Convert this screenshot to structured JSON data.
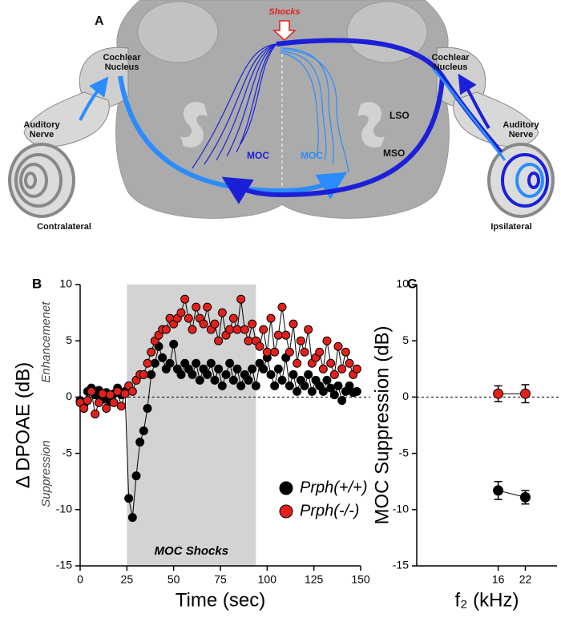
{
  "diagram": {
    "panel_label": "A",
    "stimulus": "Shocks",
    "left": {
      "cochlear_nucleus": [
        "Cochlear",
        "Nucleus"
      ],
      "auditory_nerve": [
        "Auditory",
        "Nerve"
      ],
      "side": "Contralateral",
      "neuron_group": "MOC"
    },
    "right": {
      "cochlear_nucleus": [
        "Cochlear",
        "Nucleus"
      ],
      "auditory_nerve": [
        "Auditory",
        "Nerve"
      ],
      "side": "Ipsilateral",
      "neuron_group": "MOC"
    },
    "nuclei": [
      "LSO",
      "MSO"
    ]
  },
  "chart_data": [
    {
      "type": "line",
      "panel_label": "B",
      "xlabel": "Time (sec)",
      "ylabel": "Δ DPOAE (dB)",
      "annotations": {
        "upper": "Enhancemenet",
        "lower": "Suppression"
      },
      "shaded_region": {
        "x": [
          25,
          94
        ],
        "label": "MOC Shocks"
      },
      "hline": 0,
      "legend": "lower right",
      "xlim": [
        0,
        150
      ],
      "ylim": [
        -15,
        10
      ],
      "xticks": [
        0,
        25,
        50,
        75,
        100,
        125,
        150
      ],
      "yticks": [
        -15,
        -10,
        -5,
        0,
        5,
        10
      ],
      "x": [
        0,
        2,
        4,
        6,
        8,
        10,
        12,
        14,
        16,
        18,
        20,
        22,
        24,
        26,
        28,
        30,
        32,
        34,
        36,
        38,
        40,
        42,
        44,
        46,
        48,
        50,
        52,
        54,
        56,
        58,
        60,
        62,
        64,
        66,
        68,
        70,
        72,
        74,
        76,
        78,
        80,
        82,
        84,
        86,
        88,
        90,
        92,
        94,
        96,
        98,
        100,
        102,
        104,
        106,
        108,
        110,
        112,
        114,
        116,
        118,
        120,
        122,
        124,
        126,
        128,
        130,
        132,
        134,
        136,
        138,
        140,
        142,
        144,
        146,
        148
      ],
      "series": [
        {
          "name": "Prph(+/+)",
          "color": "#000000",
          "values": [
            -0.3,
            -0.8,
            0.5,
            0.8,
            0.2,
            0.6,
            -0.2,
            0.4,
            -0.4,
            0.3,
            0.8,
            0.2,
            0.5,
            -9,
            -10.7,
            -7,
            -4,
            -3,
            -1,
            2,
            3,
            4.5,
            3.5,
            2.5,
            3,
            4.7,
            2.5,
            2,
            3,
            2.5,
            2,
            3,
            1.5,
            2.5,
            2,
            3,
            1.5,
            2.5,
            1,
            2,
            3,
            1.5,
            2.5,
            1,
            2,
            1.5,
            2.5,
            1,
            3,
            2.5,
            3.5,
            2,
            1,
            2.5,
            1.5,
            3.5,
            1,
            2,
            0.5,
            1.5,
            1,
            2,
            0.5,
            1.5,
            1,
            0.5,
            1.5,
            0.8,
            0.2,
            1,
            -0.3,
            0.5,
            1,
            0.4,
            0.5
          ]
        },
        {
          "name": "Prph(-/-)",
          "color": "#e3201b",
          "values": [
            -0.5,
            -1,
            -0.3,
            0.5,
            -1.5,
            -0.5,
            0.3,
            -1,
            0.2,
            -0.5,
            0.5,
            -0.8,
            0.3,
            1,
            0.5,
            1.5,
            2,
            2,
            3,
            4,
            5,
            5.5,
            6,
            6,
            7,
            6.5,
            7,
            7.5,
            8.7,
            7,
            6,
            8,
            7,
            6.5,
            8,
            6,
            6.5,
            5,
            7.5,
            5.5,
            6,
            7,
            6,
            8.7,
            6,
            5,
            6.5,
            5,
            4.5,
            6,
            4,
            7,
            4,
            5.5,
            8,
            5.5,
            4,
            6.5,
            3,
            5,
            4,
            6,
            3,
            3.5,
            4,
            2.5,
            5,
            3,
            2,
            4.5,
            2.5,
            4,
            3,
            2,
            2.5
          ]
        }
      ]
    },
    {
      "type": "line",
      "panel_label": "C",
      "xlabel": "f₂ (kHz)",
      "ylabel": "MOC Suppression (dB)",
      "hline": 0,
      "xlim": [
        -2,
        29
      ],
      "ylim": [
        -15,
        10
      ],
      "xticks": [
        16,
        22
      ],
      "yticks": [
        -15,
        -10,
        -5,
        0,
        5,
        10
      ],
      "x": [
        16,
        22
      ],
      "series": [
        {
          "name": "Prph(+/+)",
          "color": "#000000",
          "values": [
            -8.3,
            -8.9
          ],
          "errors": [
            0.8,
            0.6
          ]
        },
        {
          "name": "Prph(-/-)",
          "color": "#e3201b",
          "values": [
            0.3,
            0.3
          ],
          "errors": [
            0.7,
            0.8
          ]
        }
      ]
    }
  ]
}
